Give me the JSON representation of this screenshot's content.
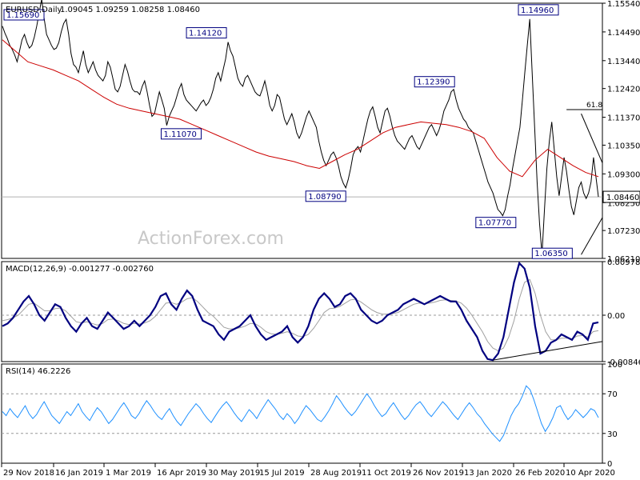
{
  "chart_data": [
    {
      "type": "line",
      "panel": "price",
      "symbol": "EURUSD,Daily",
      "ohlc": {
        "open": "1.09045",
        "high": "1.09259",
        "low": "1.08258",
        "close": "1.08460"
      },
      "current_price_label": "1.08460",
      "watermark": "ActionForex.com",
      "ylim": [
        1.0621,
        1.1554
      ],
      "y_ticks": [
        "1.15540",
        "1.14490",
        "1.13440",
        "1.12420",
        "1.11370",
        "1.10350",
        "1.09300",
        "1.08250",
        "1.07230",
        "1.06210"
      ],
      "x_ticks": [
        "29 Nov 2018",
        "16 Jan 2019",
        "1 Mar 2019",
        "16 Apr 2019",
        "30 May 2019",
        "15 Jul 2019",
        "28 Aug 2019",
        "11 Oct 2019",
        "26 Nov 2019",
        "13 Jan 2020",
        "26 Feb 2020",
        "10 Apr 2020"
      ],
      "annotations": [
        {
          "label": "1.15690",
          "date_index": 16,
          "value": 1.1569
        },
        {
          "label": "1.14120",
          "date_index": 92,
          "value": 1.1412
        },
        {
          "label": "1.11070",
          "date_index": 68,
          "value": 1.1107
        },
        {
          "label": "1.08790",
          "date_index": 140,
          "value": 1.0879
        },
        {
          "label": "1.12390",
          "date_index": 185,
          "value": 1.1239
        },
        {
          "label": "1.07770",
          "date_index": 210,
          "value": 1.0777
        },
        {
          "label": "1.14960",
          "date_index": 228,
          "value": 1.1496
        },
        {
          "label": "1.06350",
          "date_index": 233,
          "value": 1.0635
        },
        {
          "label": "61.8",
          "value": 1.1165
        }
      ],
      "series": [
        {
          "name": "",
          "color": "#000000",
          "values": [
            1.147,
            1.1445,
            1.1425,
            1.14,
            1.1385,
            1.1365,
            1.134,
            1.138,
            1.142,
            1.144,
            1.141,
            1.139,
            1.14,
            1.143,
            1.147,
            1.152,
            1.1569,
            1.15,
            1.144,
            1.142,
            1.14,
            1.1385,
            1.139,
            1.141,
            1.145,
            1.148,
            1.1495,
            1.144,
            1.137,
            1.133,
            1.132,
            1.13,
            1.134,
            1.138,
            1.133,
            1.13,
            1.132,
            1.134,
            1.131,
            1.129,
            1.128,
            1.127,
            1.129,
            1.134,
            1.132,
            1.128,
            1.124,
            1.123,
            1.125,
            1.129,
            1.133,
            1.1305,
            1.127,
            1.124,
            1.123,
            1.123,
            1.122,
            1.125,
            1.127,
            1.123,
            1.118,
            1.114,
            1.115,
            1.119,
            1.123,
            1.12,
            1.117,
            1.1107,
            1.114,
            1.116,
            1.118,
            1.121,
            1.124,
            1.126,
            1.122,
            1.12,
            1.119,
            1.118,
            1.117,
            1.116,
            1.1175,
            1.119,
            1.12,
            1.118,
            1.119,
            1.121,
            1.124,
            1.128,
            1.13,
            1.127,
            1.131,
            1.135,
            1.1412,
            1.138,
            1.136,
            1.132,
            1.128,
            1.126,
            1.125,
            1.128,
            1.129,
            1.127,
            1.125,
            1.123,
            1.122,
            1.1215,
            1.124,
            1.127,
            1.123,
            1.118,
            1.116,
            1.118,
            1.122,
            1.121,
            1.117,
            1.113,
            1.111,
            1.113,
            1.115,
            1.112,
            1.108,
            1.106,
            1.108,
            1.111,
            1.114,
            1.116,
            1.114,
            1.112,
            1.11,
            1.105,
            1.101,
            1.098,
            1.096,
            1.098,
            1.1,
            1.101,
            1.099,
            1.096,
            1.092,
            1.0895,
            1.0879,
            1.091,
            1.095,
            1.1,
            1.102,
            1.103,
            1.101,
            1.105,
            1.109,
            1.113,
            1.116,
            1.1175,
            1.114,
            1.11,
            1.108,
            1.112,
            1.116,
            1.117,
            1.114,
            1.11,
            1.107,
            1.105,
            1.104,
            1.103,
            1.102,
            1.104,
            1.106,
            1.107,
            1.105,
            1.103,
            1.102,
            1.104,
            1.106,
            1.108,
            1.11,
            1.111,
            1.109,
            1.107,
            1.109,
            1.112,
            1.116,
            1.118,
            1.12,
            1.123,
            1.1239,
            1.12,
            1.117,
            1.115,
            1.113,
            1.112,
            1.11,
            1.109,
            1.108,
            1.105,
            1.102,
            1.099,
            1.096,
            1.093,
            1.09,
            1.088,
            1.086,
            1.083,
            1.08,
            1.079,
            1.0777,
            1.08,
            1.085,
            1.089,
            1.095,
            1.1,
            1.105,
            1.11,
            1.12,
            1.13,
            1.14,
            1.1496,
            1.13,
            1.11,
            1.09,
            1.075,
            1.0635,
            1.08,
            1.095,
            1.105,
            1.112,
            1.102,
            1.092,
            1.085,
            1.092,
            1.099,
            1.094,
            1.087,
            1.081,
            1.078,
            1.083,
            1.088,
            1.09,
            1.086,
            1.084,
            1.086,
            1.09,
            1.099,
            1.092,
            1.0846
          ]
        },
        {
          "name": "",
          "color": "#cc0000",
          "values": [
            1.142,
            1.138,
            1.134,
            1.1325,
            1.131,
            1.129,
            1.127,
            1.124,
            1.121,
            1.1185,
            1.117,
            1.116,
            1.115,
            1.114,
            1.113,
            1.111,
            1.109,
            1.107,
            1.105,
            1.103,
            1.101,
            1.0995,
            1.0985,
            1.0975,
            1.096,
            1.095,
            1.0975,
            1.1,
            1.102,
            1.105,
            1.108,
            1.11,
            1.111,
            1.112,
            1.1115,
            1.111,
            1.11,
            1.1085,
            1.106,
            1.099,
            1.094,
            1.092,
            1.098,
            1.102,
            1.099,
            1.096,
            1.0935,
            1.092
          ]
        }
      ]
    },
    {
      "type": "line",
      "panel": "macd",
      "title": "MACD(12,26,9) -0.001277 -0.002760",
      "ylim": [
        -0.008464,
        0.00978
      ],
      "y_ticks": [
        "0.009780",
        "0.00",
        "-0.008464"
      ],
      "series": [
        {
          "name": "",
          "color": "#000080",
          "values": [
            -0.002,
            -0.0015,
            -0.0005,
            0.001,
            0.0025,
            0.0035,
            0.002,
            0.0,
            -0.001,
            0.0005,
            0.002,
            0.0015,
            -0.0005,
            -0.002,
            -0.003,
            -0.0015,
            -0.0005,
            -0.002,
            -0.0025,
            -0.001,
            0.0005,
            -0.0005,
            -0.0015,
            -0.0025,
            -0.002,
            -0.001,
            -0.002,
            -0.001,
            0.0,
            0.0015,
            0.0035,
            0.004,
            0.002,
            0.001,
            0.003,
            0.0045,
            0.0035,
            0.001,
            -0.001,
            -0.0015,
            -0.002,
            -0.0035,
            -0.0045,
            -0.003,
            -0.0025,
            -0.002,
            -0.001,
            0.0,
            -0.002,
            -0.0035,
            -0.0045,
            -0.004,
            -0.0035,
            -0.003,
            -0.002,
            -0.004,
            -0.005,
            -0.004,
            -0.002,
            0.001,
            0.003,
            0.004,
            0.003,
            0.0015,
            0.002,
            0.0035,
            0.004,
            0.003,
            0.001,
            0.0,
            -0.001,
            -0.0015,
            -0.001,
            0.0,
            0.0005,
            0.001,
            0.002,
            0.0025,
            0.003,
            0.0025,
            0.002,
            0.0025,
            0.003,
            0.0035,
            0.003,
            0.0025,
            0.0025,
            0.001,
            -0.001,
            -0.0025,
            -0.004,
            -0.0065,
            -0.008,
            -0.0082,
            -0.007,
            -0.004,
            0.001,
            0.006,
            0.0095,
            0.0085,
            0.005,
            -0.002,
            -0.007,
            -0.0065,
            -0.005,
            -0.0045,
            -0.0035,
            -0.004,
            -0.0045,
            -0.003,
            -0.0035,
            -0.0045,
            -0.0015,
            -0.0013
          ]
        },
        {
          "name": "",
          "color": "#a0a0a0",
          "values": [
            -0.001,
            -0.0008,
            -0.0005,
            0.0,
            0.001,
            0.002,
            0.0022,
            0.0015,
            0.0008,
            0.0008,
            0.0012,
            0.0013,
            0.0008,
            -0.0002,
            -0.0012,
            -0.0014,
            -0.0012,
            -0.0015,
            -0.0018,
            -0.0015,
            -0.0008,
            -0.0007,
            -0.001,
            -0.0015,
            -0.0017,
            -0.0015,
            -0.0016,
            -0.0014,
            -0.001,
            -0.0002,
            0.001,
            0.0022,
            0.0023,
            0.002,
            0.0024,
            0.003,
            0.0032,
            0.0025,
            0.0015,
            0.0005,
            -0.0002,
            -0.0012,
            -0.0022,
            -0.0025,
            -0.0025,
            -0.0023,
            -0.002,
            -0.0015,
            -0.0016,
            -0.0022,
            -0.003,
            -0.0034,
            -0.0035,
            -0.0033,
            -0.003,
            -0.0033,
            -0.0038,
            -0.0039,
            -0.0035,
            -0.0024,
            -0.001,
            0.0005,
            0.0012,
            0.0013,
            0.0016,
            0.0022,
            0.0028,
            0.0029,
            0.0024,
            0.0017,
            0.001,
            0.0005,
            0.0002,
            0.0002,
            0.0003,
            0.0005,
            0.001,
            0.0015,
            0.002,
            0.0022,
            0.0021,
            0.0022,
            0.0024,
            0.0027,
            0.0028,
            0.0027,
            0.0026,
            0.0022,
            0.0013,
            0.0,
            -0.0015,
            -0.003,
            -0.0048,
            -0.006,
            -0.0065,
            -0.006,
            -0.004,
            -0.001,
            0.003,
            0.006,
            0.0065,
            0.004,
            0.0,
            -0.003,
            -0.0045,
            -0.0045,
            -0.0042,
            -0.0042,
            -0.0043,
            -0.0038,
            -0.0037,
            -0.004,
            -0.003,
            -0.0028
          ]
        }
      ]
    },
    {
      "type": "line",
      "panel": "rsi",
      "title": "RSI(14) 46.2226",
      "ylim": [
        0,
        100
      ],
      "y_ticks": [
        "100",
        "70",
        "30",
        "0"
      ],
      "levels": [
        70,
        30
      ],
      "series": [
        {
          "name": "",
          "color": "#1e90ff",
          "values": [
            52,
            48,
            55,
            50,
            46,
            52,
            58,
            50,
            45,
            49,
            56,
            62,
            55,
            48,
            44,
            40,
            46,
            52,
            48,
            54,
            60,
            52,
            47,
            43,
            50,
            56,
            52,
            46,
            40,
            44,
            50,
            56,
            61,
            55,
            48,
            45,
            50,
            57,
            63,
            58,
            52,
            47,
            44,
            50,
            55,
            48,
            42,
            38,
            44,
            50,
            55,
            60,
            56,
            50,
            45,
            41,
            47,
            53,
            58,
            62,
            57,
            51,
            46,
            42,
            48,
            54,
            50,
            45,
            52,
            58,
            64,
            59,
            54,
            48,
            44,
            50,
            46,
            40,
            45,
            52,
            58,
            54,
            49,
            44,
            42,
            47,
            53,
            60,
            68,
            63,
            57,
            52,
            48,
            52,
            58,
            64,
            70,
            65,
            58,
            52,
            47,
            50,
            56,
            61,
            55,
            49,
            44,
            48,
            54,
            59,
            62,
            57,
            51,
            47,
            52,
            57,
            62,
            58,
            53,
            48,
            44,
            50,
            56,
            61,
            56,
            50,
            46,
            40,
            35,
            30,
            26,
            22,
            28,
            38,
            48,
            55,
            60,
            68,
            78,
            74,
            64,
            52,
            40,
            32,
            38,
            46,
            56,
            58,
            50,
            44,
            48,
            54,
            50,
            46,
            50,
            55,
            53,
            46
          ]
        }
      ]
    }
  ]
}
